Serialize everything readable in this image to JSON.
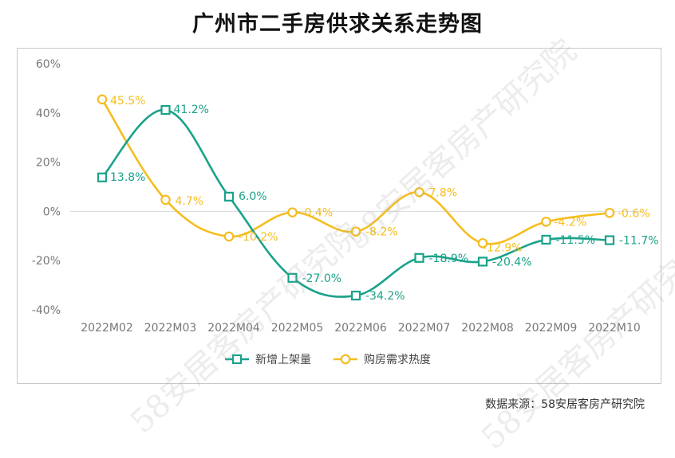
{
  "title": "广州市二手房供求关系走势图",
  "source": "数据来源：58安居客房产研究院",
  "watermark_text": "58安居客房产研究院",
  "colors": {
    "series1": "#1aa28a",
    "series2": "#f5bd1f",
    "axis_text": "#777777",
    "grid": "#d9d9d9"
  },
  "chart_data": {
    "type": "line",
    "categories": [
      "2022M02",
      "2022M03",
      "2022M04",
      "2022M05",
      "2022M06",
      "2022M07",
      "2022M08",
      "2022M09",
      "2022M10"
    ],
    "y_ticks": [
      "60%",
      "40%",
      "20%",
      "0%",
      "-20%",
      "-40%"
    ],
    "ylim": [
      -40,
      60
    ],
    "series": [
      {
        "name": "新增上架量",
        "values": [
          13.8,
          41.2,
          6.0,
          -27.0,
          -34.2,
          -18.9,
          -20.4,
          -11.5,
          -11.7
        ],
        "labels": [
          "13.8%",
          "41.2%",
          "6.0%",
          "-27.0%",
          "-34.2%",
          "-18.9%",
          "-20.4%",
          "-11.5%",
          "-11.7%"
        ],
        "marker": "square"
      },
      {
        "name": "购房需求热度",
        "values": [
          45.5,
          4.7,
          -10.2,
          -0.4,
          -8.2,
          7.8,
          -12.9,
          -4.2,
          -0.6
        ],
        "labels": [
          "45.5%",
          "4.7%",
          "-10.2%",
          "-0.4%",
          "-8.2%",
          "7.8%",
          "-12.9%",
          "-4.2%",
          "-0.6%"
        ],
        "marker": "circle"
      }
    ],
    "grid": "zero-line-only",
    "legend": "bottom-center"
  }
}
